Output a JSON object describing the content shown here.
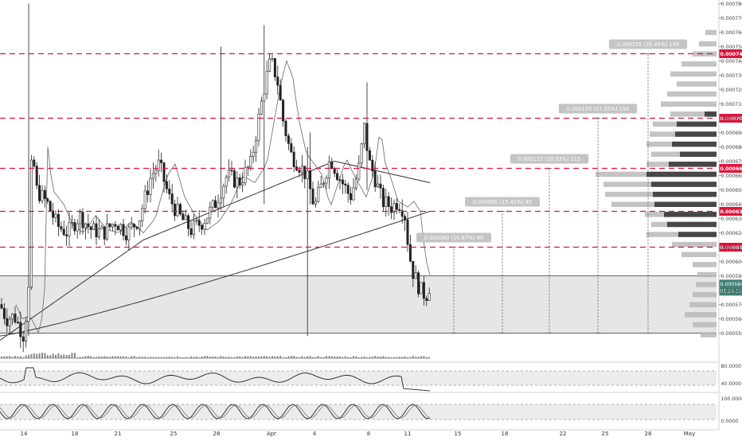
{
  "chart_data": {
    "type": "candlestick",
    "price_axis": {
      "range": [
        0.000534,
        0.000784
      ],
      "ticks": [
        "0.000780",
        "0.000770",
        "0.000760",
        "0.000750",
        "0.000740",
        "0.000730",
        "0.000720",
        "0.000710",
        "0.000700",
        "0.000690",
        "0.000680",
        "0.000670",
        "0.000660",
        "0.000650",
        "0.000640",
        "0.000630",
        "0.000620",
        "0.000610",
        "0.000600",
        "0.000590",
        "0.000580",
        "0.000570",
        "0.000560",
        "0.000550"
      ]
    },
    "time_axis": {
      "labels": [
        "14",
        "18",
        "21",
        "25",
        "28",
        "Apr",
        "4",
        "8",
        "11",
        "15",
        "18",
        "22",
        "25",
        "28",
        "May"
      ]
    },
    "resistance_levels": [
      {
        "label": "0.000745",
        "value": 0.000745
      },
      {
        "label": "0.000700",
        "value": 0.0007
      },
      {
        "label": "0.000665",
        "value": 0.000665
      },
      {
        "label": "0.000635",
        "value": 0.000635
      },
      {
        "label": "0.000610",
        "value": 0.00061
      }
    ],
    "current_price": {
      "label": "0.000584",
      "value": 0.000584
    },
    "countdown": "01:24:16",
    "zone": {
      "top": 0.00059,
      "bottom": 0.00055
    },
    "targets": [
      {
        "label": "0.000060 (10.87%) 60",
        "value": 0.00061
      },
      {
        "label": "0.000085 (15.41%) 85",
        "value": 0.000635
      },
      {
        "label": "0.000115 (20.93%) 115",
        "value": 0.000665
      },
      {
        "label": "0.000150 (27.25%) 150",
        "value": 0.0007
      },
      {
        "label": "0.000195 (35.45%) 195",
        "value": 0.000745
      }
    ],
    "rsi": {
      "ticks": [
        "80.0000",
        "40.0000"
      ]
    },
    "stoch": {
      "ticks": [
        "100.0000",
        "0.0000"
      ]
    },
    "colors": {
      "level": "#e0123c",
      "label_bg": "#c4c4c4",
      "current": "#3e7f74",
      "zone": "#e6e6e6",
      "candle": "#222222",
      "profile_dark": "#474747",
      "profile_light": "#b9b9b9"
    }
  }
}
